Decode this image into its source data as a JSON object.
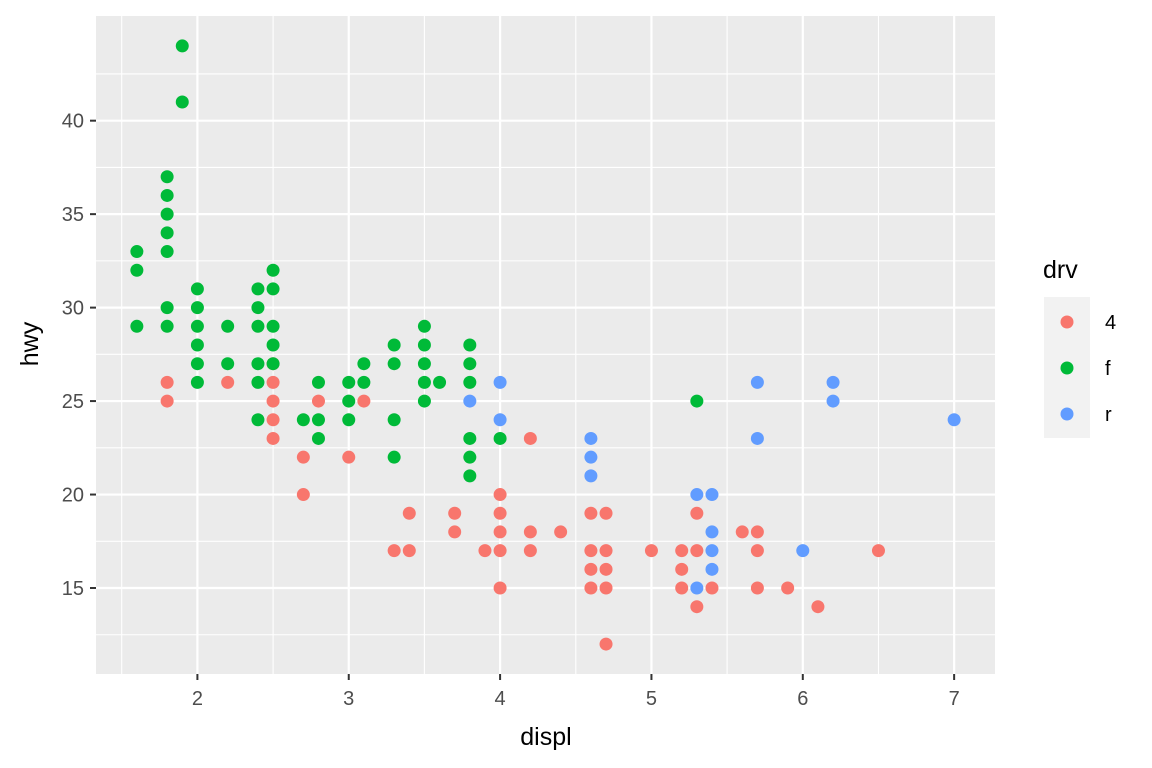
{
  "chart_data": {
    "type": "scatter",
    "xlabel": "displ",
    "ylabel": "hwy",
    "xlim": [
      1.33,
      7.27
    ],
    "ylim": [
      10.4,
      45.6
    ],
    "x_ticks": [
      2,
      3,
      4,
      5,
      6,
      7
    ],
    "y_ticks": [
      15,
      20,
      25,
      30,
      35,
      40
    ],
    "grid": true,
    "legend": {
      "title": "drv",
      "position": "right",
      "entries": [
        {
          "label": "4",
          "color": "#F8766D"
        },
        {
          "label": "f",
          "color": "#00BA38"
        },
        {
          "label": "r",
          "color": "#619CFF"
        }
      ]
    },
    "series": [
      {
        "name": "4",
        "color": "#F8766D",
        "points": [
          [
            1.8,
            26
          ],
          [
            1.8,
            25
          ],
          [
            2.2,
            26
          ],
          [
            2.5,
            27
          ],
          [
            2.5,
            26
          ],
          [
            2.5,
            25
          ],
          [
            2.5,
            24
          ],
          [
            2.5,
            23
          ],
          [
            2.7,
            22
          ],
          [
            2.7,
            20
          ],
          [
            2.8,
            25
          ],
          [
            3.0,
            22
          ],
          [
            3.1,
            25
          ],
          [
            3.3,
            17
          ],
          [
            3.4,
            19
          ],
          [
            3.4,
            17
          ],
          [
            3.7,
            19
          ],
          [
            3.7,
            18
          ],
          [
            3.9,
            17
          ],
          [
            4.0,
            20
          ],
          [
            4.0,
            19
          ],
          [
            4.0,
            18
          ],
          [
            4.0,
            17
          ],
          [
            4.0,
            15
          ],
          [
            4.2,
            23
          ],
          [
            4.2,
            18
          ],
          [
            4.2,
            17
          ],
          [
            4.4,
            18
          ],
          [
            4.6,
            19
          ],
          [
            4.6,
            17
          ],
          [
            4.6,
            16
          ],
          [
            4.6,
            15
          ],
          [
            4.7,
            19
          ],
          [
            4.7,
            17
          ],
          [
            4.7,
            16
          ],
          [
            4.7,
            15
          ],
          [
            4.7,
            12
          ],
          [
            5.0,
            17
          ],
          [
            5.2,
            17
          ],
          [
            5.2,
            16
          ],
          [
            5.2,
            15
          ],
          [
            5.3,
            19
          ],
          [
            5.3,
            17
          ],
          [
            5.3,
            14
          ],
          [
            5.4,
            15
          ],
          [
            5.6,
            18
          ],
          [
            5.7,
            18
          ],
          [
            5.7,
            17
          ],
          [
            5.7,
            15
          ],
          [
            5.9,
            15
          ],
          [
            6.1,
            14
          ],
          [
            6.5,
            17
          ]
        ]
      },
      {
        "name": "f",
        "color": "#00BA38",
        "points": [
          [
            1.6,
            33
          ],
          [
            1.6,
            32
          ],
          [
            1.6,
            29
          ],
          [
            1.8,
            37
          ],
          [
            1.8,
            36
          ],
          [
            1.8,
            35
          ],
          [
            1.8,
            34
          ],
          [
            1.8,
            33
          ],
          [
            1.8,
            30
          ],
          [
            1.8,
            29
          ],
          [
            1.9,
            44
          ],
          [
            1.9,
            41
          ],
          [
            2.0,
            31
          ],
          [
            2.0,
            30
          ],
          [
            2.0,
            29
          ],
          [
            2.0,
            28
          ],
          [
            2.0,
            27
          ],
          [
            2.0,
            26
          ],
          [
            2.2,
            29
          ],
          [
            2.2,
            27
          ],
          [
            2.4,
            31
          ],
          [
            2.4,
            30
          ],
          [
            2.4,
            29
          ],
          [
            2.4,
            27
          ],
          [
            2.4,
            26
          ],
          [
            2.4,
            24
          ],
          [
            2.5,
            32
          ],
          [
            2.5,
            31
          ],
          [
            2.5,
            29
          ],
          [
            2.5,
            28
          ],
          [
            2.5,
            27
          ],
          [
            2.7,
            24
          ],
          [
            2.8,
            26
          ],
          [
            2.8,
            24
          ],
          [
            2.8,
            23
          ],
          [
            3.0,
            26
          ],
          [
            3.0,
            25
          ],
          [
            3.0,
            24
          ],
          [
            3.1,
            27
          ],
          [
            3.1,
            26
          ],
          [
            3.3,
            28
          ],
          [
            3.3,
            27
          ],
          [
            3.3,
            24
          ],
          [
            3.3,
            22
          ],
          [
            3.5,
            29
          ],
          [
            3.5,
            28
          ],
          [
            3.5,
            27
          ],
          [
            3.5,
            26
          ],
          [
            3.5,
            25
          ],
          [
            3.6,
            26
          ],
          [
            3.8,
            28
          ],
          [
            3.8,
            27
          ],
          [
            3.8,
            26
          ],
          [
            3.8,
            23
          ],
          [
            3.8,
            22
          ],
          [
            3.8,
            21
          ],
          [
            4.0,
            23
          ],
          [
            5.3,
            25
          ]
        ]
      },
      {
        "name": "r",
        "color": "#619CFF",
        "points": [
          [
            3.8,
            25
          ],
          [
            4.0,
            26
          ],
          [
            4.0,
            24
          ],
          [
            4.6,
            23
          ],
          [
            4.6,
            22
          ],
          [
            4.6,
            21
          ],
          [
            5.3,
            20
          ],
          [
            5.3,
            15
          ],
          [
            5.4,
            20
          ],
          [
            5.4,
            18
          ],
          [
            5.4,
            17
          ],
          [
            5.4,
            16
          ],
          [
            5.7,
            26
          ],
          [
            5.7,
            23
          ],
          [
            6.0,
            17
          ],
          [
            6.2,
            26
          ],
          [
            6.2,
            25
          ],
          [
            7.0,
            24
          ]
        ]
      }
    ]
  }
}
